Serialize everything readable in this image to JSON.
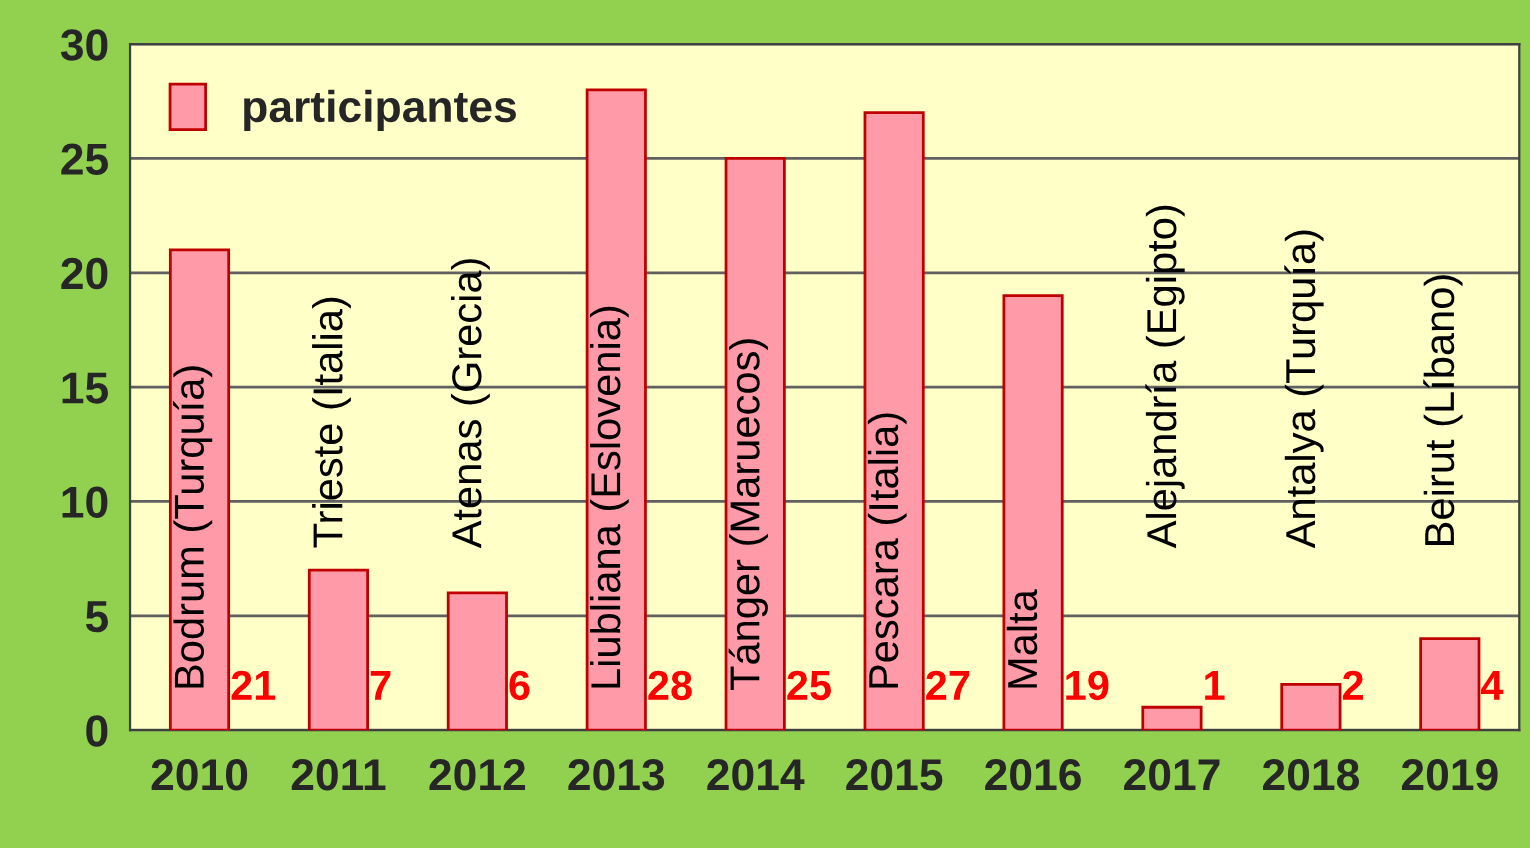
{
  "chart_data": {
    "type": "bar",
    "categories": [
      "2010",
      "2011",
      "2012",
      "2013",
      "2014",
      "2015",
      "2016",
      "2017",
      "2018",
      "2019"
    ],
    "series": [
      {
        "name": "participantes",
        "color": "#ff9aa8",
        "values": [
          21,
          7,
          6,
          28,
          25,
          27,
          19,
          1,
          2,
          4
        ]
      }
    ],
    "data_labels": true,
    "ylim": [
      0,
      30
    ],
    "yticks": [
      0,
      5,
      10,
      15,
      20,
      25,
      30
    ],
    "grid": "y",
    "legend": "top left",
    "annotations": [
      "Bodrum (Turquía)",
      "Trieste (Italia)",
      "Atenas (Grecia)",
      "Liubliana (Eslovenia)",
      "Tánger (Maruecos)",
      "Pescara (Italia)",
      "Malta",
      "Alejandría (Egipto)",
      "Antalya (Turquía)",
      "Beirut (Líbano)"
    ]
  }
}
